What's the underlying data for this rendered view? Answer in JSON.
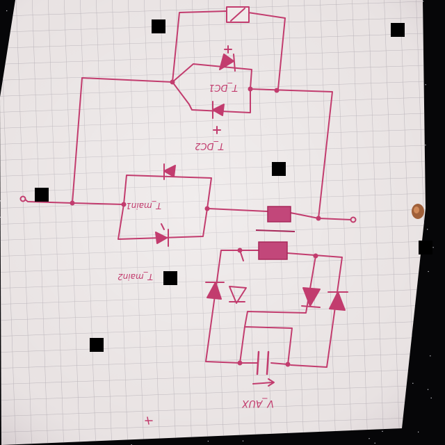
{
  "colors": {
    "paper": "#e9e3e3",
    "grid": "#b8b2b8",
    "ink": "#c23c6e",
    "ink_dark": "#a8285a",
    "filled_box": "#c2477a",
    "background": "#060608",
    "thumbtack": "#a0603a"
  },
  "labels": {
    "top_thyristor_a": "T_DC1",
    "top_thyristor_b": "T_DC2",
    "left_thyristor_a": "T_main1",
    "left_thyristor_b": "T_main2",
    "cap_label": "V_AUX",
    "plus_top": "+",
    "plus_mid": "+",
    "plus_cap": "+"
  },
  "icons": [
    "resistor-symbol",
    "thyristor-symbol",
    "diode-symbol",
    "capacitor-symbol",
    "terminal-symbol",
    "thumbtack-icon"
  ]
}
